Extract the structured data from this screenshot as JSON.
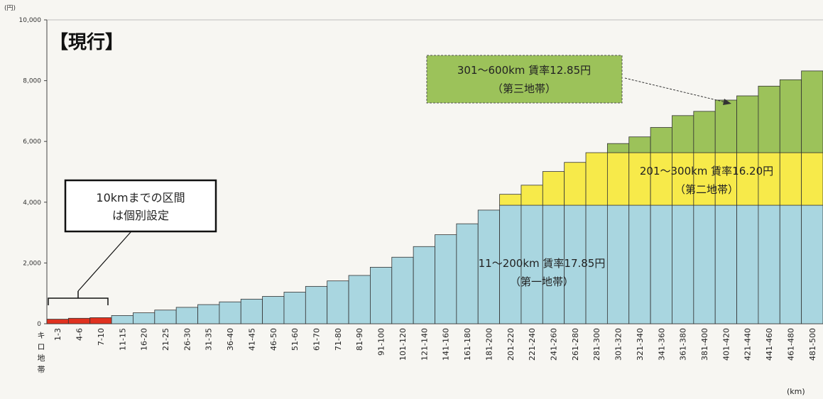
{
  "chart_data": {
    "type": "bar",
    "title": "【現行】",
    "yunit": "(円)",
    "xunit": "(km)",
    "ylim": [
      0,
      10000
    ],
    "yticks": [
      0,
      2000,
      4000,
      6000,
      8000,
      10000
    ],
    "ytick_labels": [
      "0",
      "2,000",
      "4,000",
      "6,000",
      "8,000",
      "10,000"
    ],
    "first_category_label": "キロ地帯",
    "categories": [
      "1-3",
      "4-6",
      "7-10",
      "11-15",
      "16-20",
      "21-25",
      "26-30",
      "31-35",
      "36-40",
      "41-45",
      "46-50",
      "51-60",
      "61-70",
      "71-80",
      "81-90",
      "91-100",
      "101-120",
      "121-140",
      "141-160",
      "161-180",
      "181-200",
      "201-220",
      "221-240",
      "241-260",
      "261-280",
      "281-300",
      "301-320",
      "321-340",
      "341-360",
      "361-380",
      "381-400",
      "401-420",
      "421-440",
      "441-460",
      "461-480",
      "481-500"
    ],
    "series": [
      {
        "name": "10kmまでの区間",
        "color": "#e0311f",
        "values": [
          150,
          180,
          200,
          0,
          0,
          0,
          0,
          0,
          0,
          0,
          0,
          0,
          0,
          0,
          0,
          0,
          0,
          0,
          0,
          0,
          0,
          0,
          0,
          0,
          0,
          0,
          0,
          0,
          0,
          0,
          0,
          0,
          0,
          0,
          0,
          0
        ]
      },
      {
        "name": "第一地帯",
        "color": "#a9d6e0",
        "values": [
          0,
          0,
          0,
          270,
          360,
          450,
          540,
          630,
          720,
          810,
          900,
          1040,
          1230,
          1410,
          1590,
          1860,
          2190,
          2540,
          2930,
          3290,
          3740,
          3900,
          3900,
          3900,
          3900,
          3900,
          3900,
          3900,
          3900,
          3900,
          3900,
          3900,
          3900,
          3900,
          3900,
          3900
        ]
      },
      {
        "name": "第二地帯",
        "color": "#f7ea4a",
        "values": [
          0,
          0,
          0,
          0,
          0,
          0,
          0,
          0,
          0,
          0,
          0,
          0,
          0,
          0,
          0,
          0,
          0,
          0,
          0,
          0,
          0,
          360,
          660,
          1110,
          1410,
          1730,
          1730,
          1730,
          1730,
          1730,
          1730,
          1730,
          1730,
          1730,
          1730,
          1730
        ]
      },
      {
        "name": "第三地帯",
        "color": "#9cc25a",
        "values": [
          0,
          0,
          0,
          0,
          0,
          0,
          0,
          0,
          0,
          0,
          0,
          0,
          0,
          0,
          0,
          0,
          0,
          0,
          0,
          0,
          0,
          0,
          0,
          0,
          0,
          0,
          300,
          520,
          830,
          1220,
          1360,
          1730,
          1870,
          2190,
          2400,
          2690
        ]
      }
    ],
    "annotations": [
      {
        "lines": [
          "301～600km 賃率12.85円",
          "（第三地帯）"
        ]
      },
      {
        "lines": [
          "201～300km 賃率16.20円",
          "（第二地帯）"
        ]
      },
      {
        "lines": [
          "11～200km 賃率17.85円",
          "（第一地帯）"
        ]
      },
      {
        "lines": [
          "10kmまでの区間",
          "は個別設定"
        ]
      }
    ],
    "grid": false,
    "legend": "none"
  }
}
